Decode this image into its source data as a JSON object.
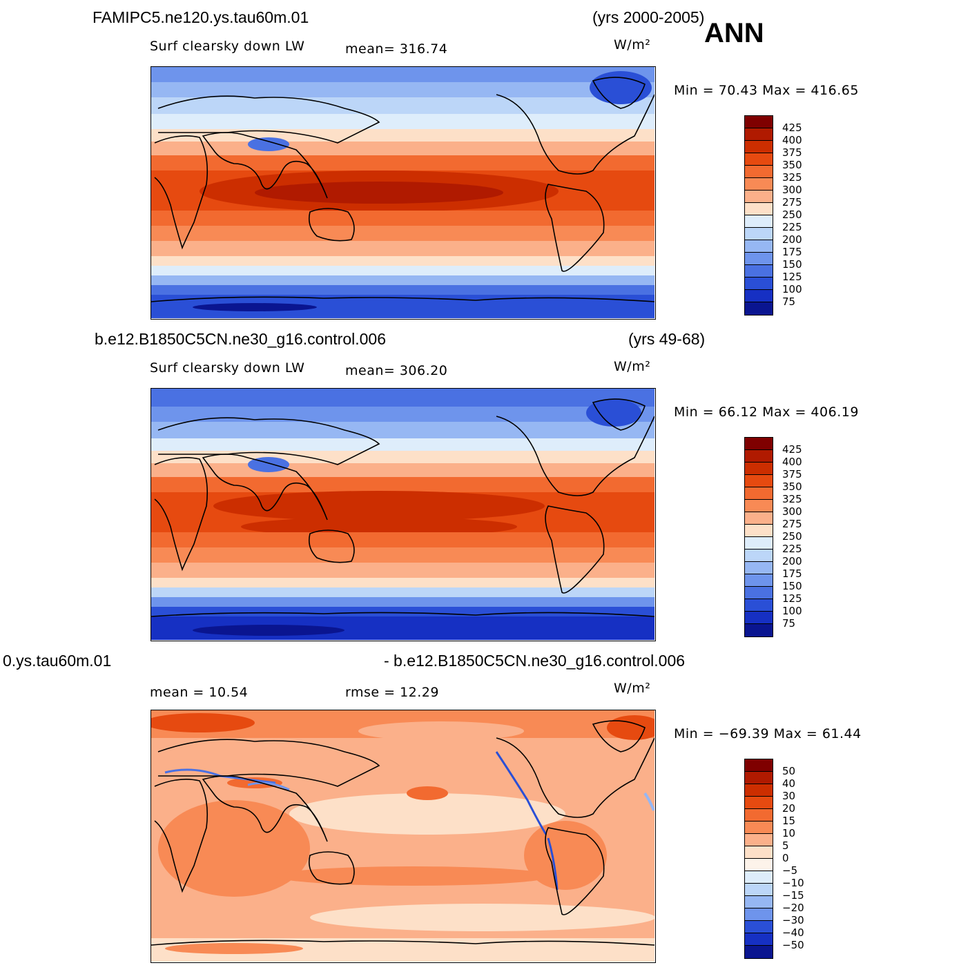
{
  "season": "ANN",
  "panels": [
    {
      "case": "FAMIPC5.ne120.ys.tau60m.01",
      "years": "(yrs 2000-2005)",
      "variable": "Surf clearsky down LW",
      "stat1": "mean=  316.74",
      "stat2": "",
      "units": "W/m²",
      "minmax": "Min =   70.43 Max =  416.65",
      "colorbar": {
        "ticks": [
          "425",
          "400",
          "375",
          "350",
          "325",
          "300",
          "275",
          "250",
          "225",
          "200",
          "175",
          "150",
          "125",
          "100",
          "75"
        ],
        "colors": [
          "#7f0000",
          "#b01a00",
          "#cc2e00",
          "#e64a10",
          "#f26a30",
          "#f88a55",
          "#fbb08a",
          "#fde0c8",
          "#deedfb",
          "#bcd6f8",
          "#96b7f3",
          "#6e94ec",
          "#4a71e2",
          "#2a4fd6",
          "#1630c3",
          "#0a1590"
        ]
      }
    },
    {
      "case": "b.e12.B1850C5CN.ne30_g16.control.006",
      "years": "(yrs 49-68)",
      "variable": "Surf clearsky down LW",
      "stat1": "mean=  306.20",
      "stat2": "",
      "units": "W/m²",
      "minmax": "Min =   66.12 Max =  406.19",
      "colorbar": {
        "ticks": [
          "425",
          "400",
          "375",
          "350",
          "325",
          "300",
          "275",
          "250",
          "225",
          "200",
          "175",
          "150",
          "125",
          "100",
          "75"
        ],
        "colors": [
          "#7f0000",
          "#b01a00",
          "#cc2e00",
          "#e64a10",
          "#f26a30",
          "#f88a55",
          "#fbb08a",
          "#fde0c8",
          "#deedfb",
          "#bcd6f8",
          "#96b7f3",
          "#6e94ec",
          "#4a71e2",
          "#2a4fd6",
          "#1630c3",
          "#0a1590"
        ]
      }
    },
    {
      "case": "0.ys.tau60m.01",
      "years": "- b.e12.B1850C5CN.ne30_g16.control.006",
      "variable": "",
      "stat1": "mean =   10.54",
      "stat2": "rmse =   12.29",
      "units": "W/m²",
      "minmax": "Min = −69.39 Max =   61.44",
      "colorbar": {
        "ticks": [
          "50",
          "40",
          "30",
          "20",
          "15",
          "10",
          "5",
          "0",
          "−5",
          "−10",
          "−15",
          "−20",
          "−30",
          "−40",
          "−50"
        ],
        "colors": [
          "#7f0000",
          "#b01a00",
          "#cc2e00",
          "#e64a10",
          "#f26a30",
          "#f88a55",
          "#fbb08a",
          "#fde0c8",
          "#fdf3ea",
          "#deedfb",
          "#bcd6f8",
          "#96b7f3",
          "#6e94ec",
          "#2a4fd6",
          "#1630c3",
          "#0a1590"
        ]
      }
    }
  ]
}
